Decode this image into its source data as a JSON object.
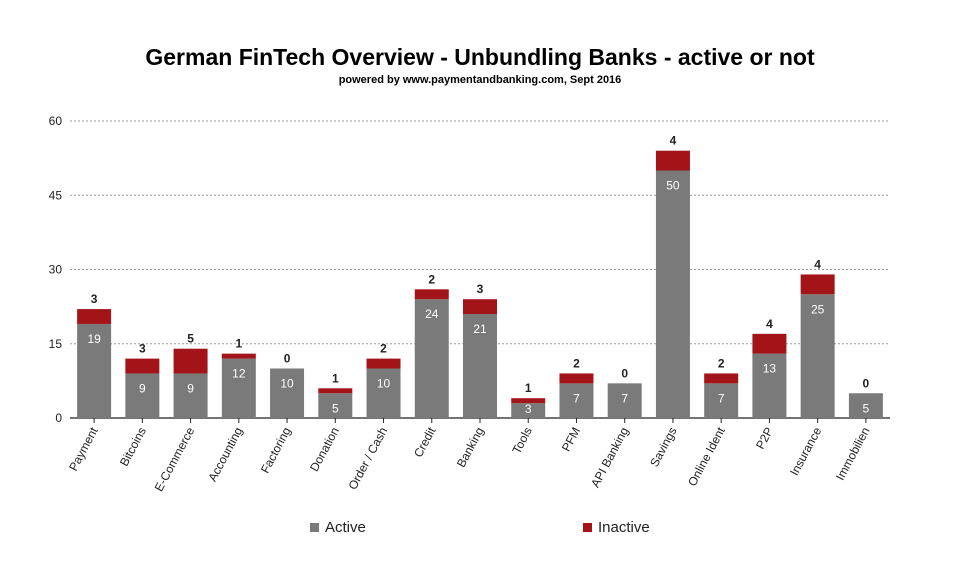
{
  "chart_data": {
    "type": "bar",
    "stacked": true,
    "title": "German FinTech Overview - Unbundling Banks - active or not",
    "subtitle": "powered by www.paymentandbanking.com, Sept 2016",
    "categories": [
      "Payment",
      "Bitcoins",
      "E-Commerce",
      "Accounting",
      "Factoring",
      "Donation",
      "Order / Cash",
      "Credit",
      "Banking",
      "Tools",
      "PFM",
      "API Banking",
      "Savings",
      "Online Ident",
      "P2P",
      "Insurance",
      "Immobilien"
    ],
    "series": [
      {
        "name": "Active",
        "color": "#7a7a7a",
        "values": [
          19,
          9,
          9,
          12,
          10,
          5,
          10,
          24,
          21,
          3,
          7,
          7,
          50,
          7,
          13,
          25,
          5
        ]
      },
      {
        "name": "Inactive",
        "color": "#a31418",
        "values": [
          3,
          3,
          5,
          1,
          0,
          1,
          2,
          2,
          3,
          1,
          2,
          0,
          4,
          2,
          4,
          4,
          0
        ]
      }
    ],
    "yticks": [
      0,
      15,
      30,
      45,
      60
    ],
    "ylim": [
      0,
      60
    ],
    "grid": true,
    "legend_position": "bottom"
  }
}
